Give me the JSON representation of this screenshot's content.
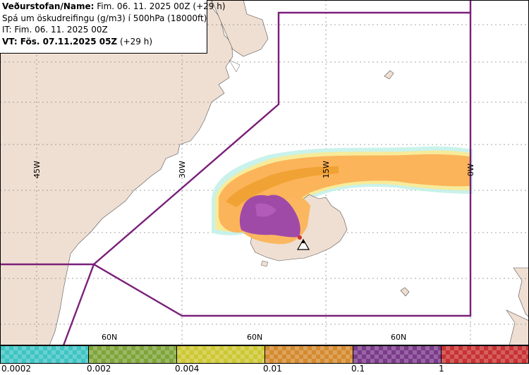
{
  "header": {
    "line1_label": "Veðurstofan/Name:",
    "line1_value": " Fim. 06. 11. 2025 00Z (+29 h)",
    "line2": "Spá um öskudreifingu (g/m3) í 500hPa (18000ft)",
    "line3": "IT: Fim. 06. 11. 2025 00Z",
    "line4_label": "VT: Fös. 07.11.2025 05Z",
    "line4_value": " (+29 h)"
  },
  "map_labels": {
    "lon_45w": "45W",
    "lon_30w": "30W",
    "lon_15w": "15W",
    "lon_0w": "0W",
    "lat_60n_a": "60N",
    "lat_60n_b": "60N",
    "lat_60n_c": "60N"
  },
  "legend": {
    "labels": [
      "0.0002",
      "0.002",
      "0.004",
      "0.01",
      "0.1",
      "1"
    ],
    "colors": [
      "#3fc4c4",
      "#7fa53a",
      "#cdc833",
      "#d48a2e",
      "#7b3a8a",
      "#c83232"
    ]
  },
  "colors": {
    "land": "#efdfd2",
    "boundary": "#7a1f7a",
    "ash_low": "#fbb45a",
    "ash_mid": "#f0a030",
    "ash_high": "#a04aa8",
    "ash_edge_cyan": "#bff0e8",
    "ash_edge_yellow": "#f7eb9a"
  }
}
